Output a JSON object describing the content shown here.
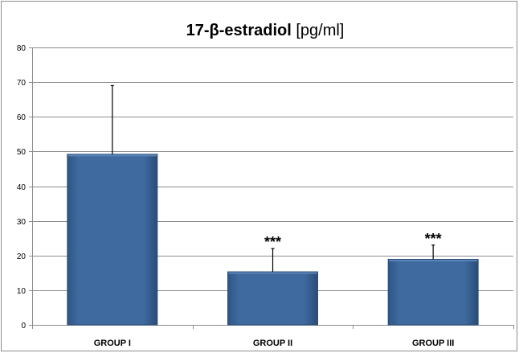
{
  "chart_data": {
    "type": "bar",
    "title_bold": "17-β-estradiol",
    "title_unit": " [pg/ml]",
    "xlabel": "",
    "ylabel": "",
    "categories": [
      "GROUP I",
      "GROUP II",
      "GROUP III"
    ],
    "values": [
      49.2,
      15.3,
      18.9
    ],
    "error_upper": [
      69,
      22,
      23
    ],
    "significance": [
      "",
      "***",
      "***"
    ],
    "ylim": [
      0,
      80
    ],
    "yticks": [
      0,
      10,
      20,
      30,
      40,
      50,
      60,
      70,
      80
    ],
    "grid": true,
    "legend": "none",
    "bar_color": "#3e6a9f",
    "bar_edge_color": "#2b4d78"
  }
}
